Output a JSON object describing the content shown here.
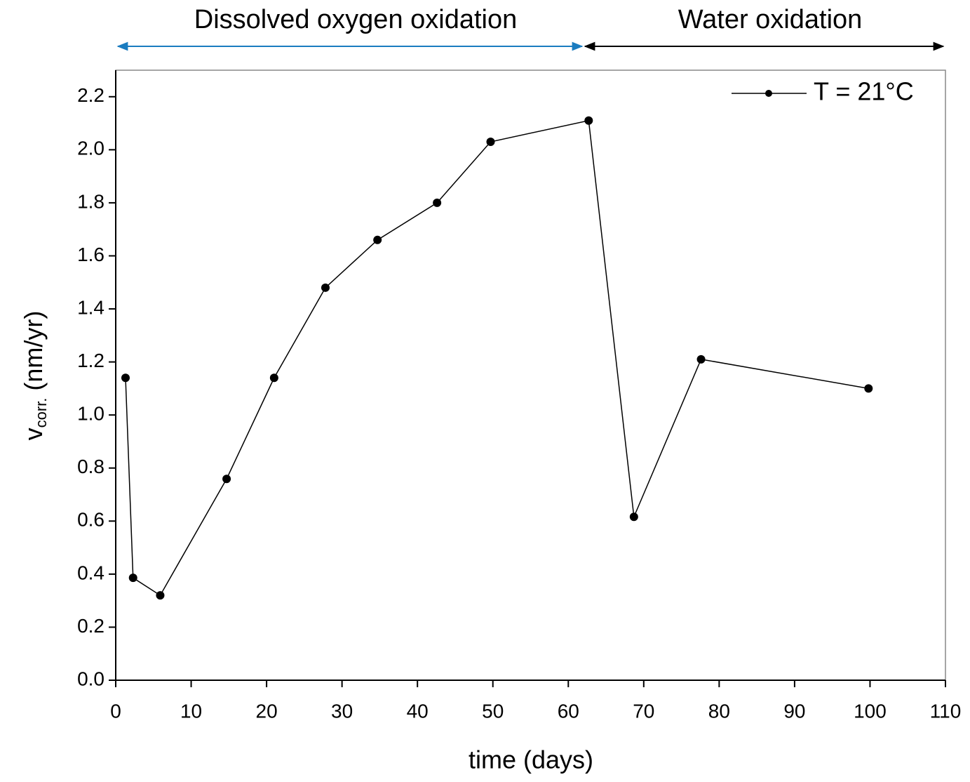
{
  "chart_data": {
    "type": "line",
    "annotations": [
      {
        "text": "Dissolved oxygen oxidation",
        "color": "#1f9fe0"
      },
      {
        "text": "Water oxidation",
        "color": "#000000"
      }
    ],
    "x_label": "time (days)",
    "y_label": {
      "symbol": "v",
      "subscript": "corr.",
      "unit": "(nm/yr)"
    },
    "x": [
      1.3,
      2.3,
      5.9,
      14.7,
      21.0,
      27.8,
      34.7,
      42.6,
      49.7,
      62.7,
      68.7,
      77.6,
      99.8
    ],
    "series": [
      {
        "name": "T = 21°C",
        "color": "#000000",
        "values": [
          1.14,
          0.386,
          0.32,
          0.759,
          1.14,
          1.48,
          1.66,
          1.8,
          2.03,
          2.11,
          0.616,
          1.21,
          1.1
        ]
      }
    ],
    "xlim": [
      0,
      110
    ],
    "xticks": [
      0,
      10,
      20,
      30,
      40,
      50,
      60,
      70,
      80,
      90,
      100,
      110
    ],
    "ylim": [
      0,
      2.3
    ],
    "yticks": [
      {
        "value": 0,
        "label": "0.0"
      },
      0.2,
      0.4,
      0.6,
      0.8,
      {
        "value": 1,
        "label": "1.0"
      },
      1.2,
      1.4,
      1.6,
      1.8,
      {
        "value": 2,
        "label": "2.0"
      },
      2.2
    ],
    "legend": "top-right",
    "grid": false
  }
}
